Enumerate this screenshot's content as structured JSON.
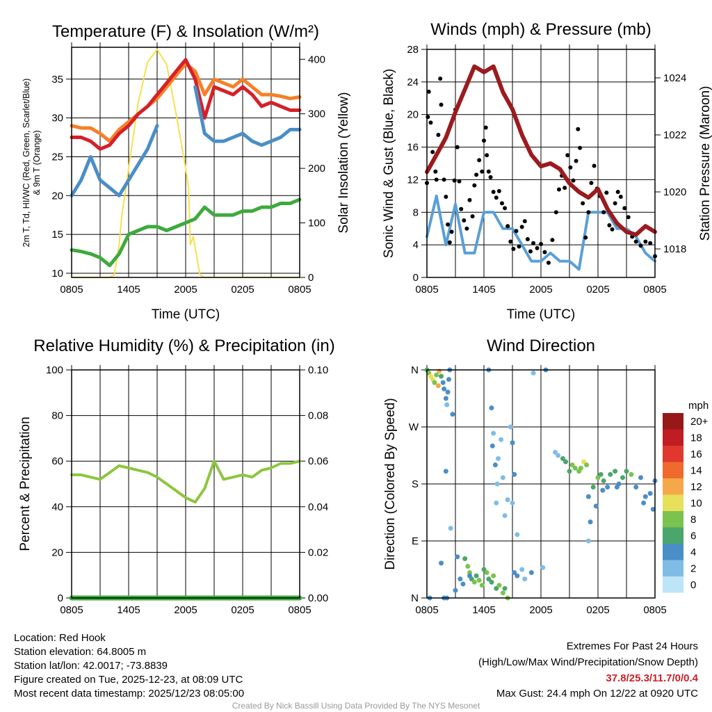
{
  "footer": {
    "location": "Location: Red Hook",
    "elevation": "Station elevation: 64.8005 m",
    "latlon": "Station lat/lon: 42.0017; -73.8839",
    "created": "Figure created on Tue, 2025-12-23, at 08:09 UTC",
    "recent": "Most recent data timestamp: 2025/12/23 08:05:00",
    "extremes_title": "Extremes For Past 24 Hours",
    "extremes_sub": "(High/Low/Max Wind/Precipitation/Snow Depth)",
    "extremes_values": "37.8/25.3/11.7/0/0.4",
    "max_gust": "Max Gust: 24.4 mph On 12/22 at 0920 UTC",
    "credit": "Created By Nick Bassill Using Data Provided By The NYS Mesonet"
  },
  "x_tick_labels": [
    "0805",
    "1405",
    "2005",
    "0205",
    "0805"
  ],
  "x_tick_hours": [
    0,
    6,
    12,
    18,
    24
  ],
  "x_minor_hours": [
    3,
    9,
    15,
    21
  ],
  "hours": [
    0,
    1,
    2,
    3,
    4,
    5,
    6,
    7,
    8,
    9,
    10,
    11,
    12,
    13,
    14,
    15,
    16,
    17,
    18,
    19,
    20,
    21,
    22,
    23,
    24
  ],
  "chart_data": [
    {
      "id": "temperature",
      "type": "line",
      "title": "Temperature (F) & Insolation (W/m²)",
      "xlabel": "Time (UTC)",
      "ylabel": "2m T, Td, HI/WC (Red, Green, Scarlet/Blue)",
      "ylabel2": "& 9m T (Orange)",
      "y2label": "Solar Insolation (Yellow)",
      "ylim": [
        9.46,
        39.1
      ],
      "y_ticks": [
        10,
        15,
        20,
        25,
        30,
        35
      ],
      "y2lim": [
        0,
        422
      ],
      "y2_ticks": [
        0,
        100,
        200,
        300,
        400
      ],
      "series": [
        {
          "name": "9m T",
          "color": "#f5802a",
          "values": [
            29,
            28.7,
            28.7,
            28,
            27,
            28.5,
            29.5,
            30.5,
            31.5,
            32.5,
            34,
            35.5,
            37,
            36,
            33,
            35,
            34.5,
            34,
            35,
            34,
            33,
            33,
            32.8,
            32.5,
            32.7
          ]
        },
        {
          "name": "2m T",
          "color": "#d62027",
          "values": [
            27.5,
            27.5,
            27,
            26,
            26.5,
            28,
            29,
            30.5,
            31.5,
            33,
            34.5,
            36,
            37.5,
            35,
            30,
            34,
            33.5,
            33,
            34,
            33,
            31.5,
            32,
            31.5,
            31,
            31
          ]
        },
        {
          "name": "HI/WC",
          "color": "#4a8ec8",
          "values": [
            20,
            22,
            25,
            22,
            21,
            20,
            22,
            24,
            26,
            29,
            null,
            34,
            null,
            34,
            28,
            27,
            27,
            27.5,
            28,
            27,
            26.5,
            27,
            27.5,
            28.5,
            28.5
          ]
        },
        {
          "name": "Td",
          "color": "#3daa3d",
          "values": [
            13,
            12.8,
            12.5,
            12,
            11,
            12.5,
            15,
            15.5,
            16,
            16,
            15.5,
            16,
            16.5,
            17,
            18.5,
            17.5,
            17.5,
            17.5,
            18,
            18,
            18.5,
            18.5,
            19,
            19,
            19.5
          ]
        }
      ],
      "insolation": {
        "name": "Solar Insolation",
        "color": "#f8e04a",
        "hours": [
          0,
          4,
          4.5,
          5,
          5.3,
          5.6,
          6,
          7,
          8,
          9,
          10,
          11,
          12,
          12.3,
          12.5,
          12.8,
          13.1,
          13.5,
          14,
          24
        ],
        "values": [
          0,
          0,
          5,
          60,
          115,
          150,
          200,
          320,
          395,
          418,
          390,
          300,
          200,
          165,
          60,
          75,
          45,
          5,
          0,
          0
        ]
      }
    },
    {
      "id": "winds",
      "type": "line",
      "title": "Winds (mph) & Pressure (mb)",
      "xlabel": "Time (UTC)",
      "ylabel": "Sonic Wind & Gust (Blue, Black)",
      "y2label": "Station Pressure (Maroon)",
      "ylim": [
        0,
        28
      ],
      "y_ticks": [
        0,
        4,
        8,
        12,
        16,
        20,
        24,
        28
      ],
      "y2lim": [
        1017,
        1025
      ],
      "y2_ticks": [
        1018,
        1020,
        1022,
        1024
      ],
      "series": [
        {
          "name": "Sonic Wind",
          "color": "#5a9fd6",
          "values": [
            5,
            10,
            4,
            9,
            3,
            3,
            8,
            8,
            6,
            6,
            4,
            2,
            2,
            3,
            2,
            2,
            1,
            8,
            8,
            8,
            6,
            6,
            5,
            3,
            2
          ]
        },
        {
          "name": "Station Pressure",
          "color": "#9b1b1e",
          "axis": "right",
          "values": [
            1020.7,
            1021.3,
            1021.9,
            1022.8,
            1023.6,
            1024.4,
            1024.2,
            1024.4,
            1023.5,
            1022.9,
            1022.0,
            1021.3,
            1020.9,
            1021.0,
            1020.8,
            1020.3,
            1020.0,
            1019.8,
            1020.1,
            1019.4,
            1018.9,
            1018.6,
            1018.5,
            1018.8,
            1018.6
          ]
        }
      ],
      "gusts": [
        [
          0,
          11.6
        ],
        [
          0.1,
          19.7
        ],
        [
          0.2,
          22.8
        ],
        [
          0.4,
          19
        ],
        [
          0.6,
          15.4
        ],
        [
          0.9,
          13
        ],
        [
          1.0,
          12
        ],
        [
          1.2,
          17.5
        ],
        [
          1.4,
          24.4
        ],
        [
          1.5,
          21.2
        ],
        [
          1.8,
          12
        ],
        [
          2.0,
          9.9
        ],
        [
          2.2,
          6.5
        ],
        [
          2.4,
          4.3
        ],
        [
          2.6,
          5.6
        ],
        [
          2.9,
          11.9
        ],
        [
          3.0,
          20.6
        ],
        [
          3.2,
          16
        ],
        [
          3.4,
          11.8
        ],
        [
          3.6,
          8.4
        ],
        [
          3.9,
          7
        ],
        [
          4.2,
          6
        ],
        [
          4.5,
          9.5
        ],
        [
          4.8,
          7.5
        ],
        [
          5.0,
          11.3
        ],
        [
          5.2,
          12.6
        ],
        [
          5.5,
          14.4
        ],
        [
          5.8,
          13
        ],
        [
          6.0,
          16.8
        ],
        [
          6.2,
          18.4
        ],
        [
          6.3,
          15
        ],
        [
          6.5,
          13
        ],
        [
          6.7,
          12.3
        ],
        [
          7.0,
          10.5
        ],
        [
          7.3,
          9.8
        ],
        [
          7.6,
          10.6
        ],
        [
          7.9,
          9.1
        ],
        [
          8.2,
          8.5
        ],
        [
          8.5,
          6.3
        ],
        [
          8.8,
          4.4
        ],
        [
          9.1,
          3.5
        ],
        [
          9.4,
          5.7
        ],
        [
          9.7,
          3.8
        ],
        [
          10.0,
          6.2
        ],
        [
          10.3,
          6.9
        ],
        [
          10.6,
          4.7
        ],
        [
          10.9,
          3.2
        ],
        [
          11.2,
          4.2
        ],
        [
          11.6,
          3.6
        ],
        [
          12.0,
          4.1
        ],
        [
          12.4,
          3.1
        ],
        [
          12.8,
          1.8
        ],
        [
          13.2,
          4.6
        ],
        [
          13.6,
          8
        ],
        [
          13.9,
          10.8
        ],
        [
          14.2,
          12.5
        ],
        [
          14.5,
          11
        ],
        [
          14.8,
          15
        ],
        [
          15.1,
          13.5
        ],
        [
          15.4,
          11.9
        ],
        [
          15.7,
          14.3
        ],
        [
          15.9,
          18.2
        ],
        [
          16.1,
          15.9
        ],
        [
          16.4,
          9.1
        ],
        [
          16.7,
          4.9
        ],
        [
          17.0,
          8
        ],
        [
          17.3,
          11.6
        ],
        [
          17.6,
          13.7
        ],
        [
          17.9,
          10.9
        ],
        [
          18.2,
          10
        ],
        [
          18.6,
          8
        ],
        [
          18.9,
          10.4
        ],
        [
          19.2,
          6.4
        ],
        [
          19.5,
          5.9
        ],
        [
          19.8,
          9.1
        ],
        [
          20.1,
          10.5
        ],
        [
          20.4,
          9.9
        ],
        [
          20.8,
          8.5
        ],
        [
          21.2,
          7.4
        ],
        [
          21.6,
          5
        ],
        [
          22.0,
          4.4
        ],
        [
          22.5,
          3.9
        ],
        [
          23.0,
          4.4
        ],
        [
          23.5,
          4.2
        ],
        [
          24.0,
          2.6
        ]
      ]
    },
    {
      "id": "humidity",
      "type": "line",
      "title": "Relative Humidity (%) & Precipitation (in)",
      "ylabel": "Percent & Precipitation",
      "ylim": [
        0,
        100
      ],
      "y_ticks": [
        0,
        20,
        40,
        60,
        80,
        100
      ],
      "y2lim": [
        0,
        0.1
      ],
      "y2_ticks": [
        0,
        0.02,
        0.04,
        0.06,
        0.08,
        0.1
      ],
      "y2_tick_labels": [
        "0.00",
        "0.02",
        "0.04",
        "0.06",
        "0.08",
        "0.10"
      ],
      "series": [
        {
          "name": "Relative Humidity",
          "color": "#8cc63f",
          "values": [
            54,
            54,
            53,
            52,
            55,
            58,
            57,
            56,
            55,
            53,
            50,
            47,
            44,
            42,
            48,
            60,
            52,
            53,
            54,
            53,
            56,
            57,
            59,
            59,
            60
          ]
        },
        {
          "name": "Precipitation",
          "color": "#3daa3d",
          "axis": "right",
          "values": [
            0,
            0,
            0,
            0,
            0,
            0,
            0,
            0,
            0,
            0,
            0,
            0,
            0,
            0,
            0,
            0,
            0,
            0,
            0,
            0,
            0,
            0,
            0,
            0,
            0
          ]
        }
      ]
    },
    {
      "id": "direction",
      "type": "scatter",
      "title": "Wind Direction",
      "ylabel": "Direction (Colored By Speed)",
      "ylim": [
        0,
        360
      ],
      "y_ticks": [
        0,
        90,
        180,
        270,
        360
      ],
      "y_tick_labels": [
        "N",
        "E",
        "S",
        "W",
        "N"
      ],
      "legend": {
        "title": "mph",
        "placement": "right",
        "labels": [
          "20+",
          "18",
          "16",
          "14",
          "12",
          "10",
          "8",
          "6",
          "4",
          "2",
          "0"
        ],
        "colors": [
          "#961818",
          "#c01c24",
          "#e0382e",
          "#f06a2e",
          "#f5a84a",
          "#e6e05a",
          "#7cc24e",
          "#4aa66a",
          "#4a8ec8",
          "#7fbde6",
          "#bde5f7"
        ]
      },
      "points": [
        [
          0,
          360,
          6
        ],
        [
          0.2,
          355,
          8
        ],
        [
          0.4,
          350,
          10
        ],
        [
          0.6,
          345,
          9
        ],
        [
          0.8,
          340,
          8
        ],
        [
          1.0,
          352,
          7
        ],
        [
          1.2,
          335,
          11
        ],
        [
          1.3,
          358,
          12
        ],
        [
          1.5,
          350,
          5
        ],
        [
          1.7,
          340,
          4
        ],
        [
          1.8,
          330,
          3
        ],
        [
          2.0,
          315,
          3
        ],
        [
          2.1,
          305,
          2
        ],
        [
          2.2,
          325,
          4
        ],
        [
          2.3,
          345,
          3
        ],
        [
          2.4,
          360,
          4
        ],
        [
          2.7,
          290,
          3
        ],
        [
          0.3,
          0,
          4
        ],
        [
          1.5,
          55,
          4
        ],
        [
          1.8,
          0,
          3
        ],
        [
          2.1,
          0,
          4
        ],
        [
          3.2,
          65,
          3
        ],
        [
          4.0,
          62,
          6
        ],
        [
          4.3,
          50,
          7
        ],
        [
          4.5,
          40,
          7
        ],
        [
          4.7,
          30,
          6
        ],
        [
          5.0,
          25,
          7
        ],
        [
          5.2,
          35,
          6
        ],
        [
          5.5,
          28,
          8
        ],
        [
          5.8,
          20,
          7
        ],
        [
          6.0,
          45,
          6
        ],
        [
          6.3,
          40,
          7
        ],
        [
          6.5,
          30,
          6
        ],
        [
          6.8,
          25,
          6
        ],
        [
          7.0,
          35,
          7
        ],
        [
          7.3,
          15,
          6
        ],
        [
          7.6,
          20,
          7
        ],
        [
          8.0,
          8,
          7
        ],
        [
          8.2,
          15,
          6
        ],
        [
          8.5,
          0,
          7
        ],
        [
          3.0,
          12,
          4
        ],
        [
          3.5,
          30,
          3
        ],
        [
          3.8,
          22,
          3
        ],
        [
          2.5,
          110,
          2
        ],
        [
          2.0,
          200,
          3
        ],
        [
          4.5,
          35,
          4
        ],
        [
          6.5,
          360,
          3
        ],
        [
          6.8,
          300,
          3
        ],
        [
          7.0,
          260,
          2
        ],
        [
          6.9,
          240,
          4
        ],
        [
          7.2,
          210,
          3
        ],
        [
          7.5,
          220,
          2
        ],
        [
          7.3,
          150,
          1
        ],
        [
          7.4,
          180,
          2
        ],
        [
          7.8,
          250,
          2
        ],
        [
          8.0,
          190,
          2
        ],
        [
          8.2,
          130,
          1
        ],
        [
          8.5,
          155,
          2
        ],
        [
          8.8,
          270,
          2
        ],
        [
          9.0,
          245,
          3
        ],
        [
          9.2,
          40,
          3
        ],
        [
          9.5,
          35,
          4
        ],
        [
          10.0,
          45,
          2
        ],
        [
          10.3,
          30,
          1
        ],
        [
          11.0,
          40,
          3
        ],
        [
          11.2,
          355,
          2
        ],
        [
          12.2,
          48,
          2
        ],
        [
          12.5,
          360,
          3
        ],
        [
          13.5,
          230,
          1
        ],
        [
          13.8,
          225,
          2
        ],
        [
          14.3,
          220,
          5
        ],
        [
          14.6,
          215,
          6
        ],
        [
          15.0,
          200,
          6
        ],
        [
          15.3,
          210,
          7
        ],
        [
          15.6,
          205,
          8
        ],
        [
          16.0,
          200,
          7
        ],
        [
          16.2,
          205,
          8
        ],
        [
          16.5,
          215,
          9
        ],
        [
          16.8,
          210,
          7
        ],
        [
          17.0,
          160,
          4
        ],
        [
          17.5,
          175,
          6
        ],
        [
          18.0,
          190,
          7
        ],
        [
          18.3,
          195,
          6
        ],
        [
          18.6,
          185,
          5
        ],
        [
          19.0,
          175,
          4
        ],
        [
          19.3,
          195,
          6
        ],
        [
          19.8,
          200,
          6
        ],
        [
          20.2,
          180,
          4
        ],
        [
          20.6,
          190,
          5
        ],
        [
          21.0,
          200,
          5
        ],
        [
          21.5,
          195,
          7
        ],
        [
          22.0,
          175,
          4
        ],
        [
          22.5,
          190,
          3
        ],
        [
          23.0,
          160,
          3
        ],
        [
          23.5,
          165,
          4
        ],
        [
          24.0,
          185,
          3
        ],
        [
          17.2,
          120,
          3
        ],
        [
          17.0,
          90,
          2
        ],
        [
          17.8,
          145,
          4
        ],
        [
          18.5,
          170,
          3
        ],
        [
          20.0,
          175,
          4
        ],
        [
          22.8,
          150,
          4
        ],
        [
          23.8,
          140,
          4
        ],
        [
          9.2,
          195,
          3
        ],
        [
          9.0,
          150,
          2
        ],
        [
          9.5,
          100,
          2
        ]
      ]
    }
  ]
}
